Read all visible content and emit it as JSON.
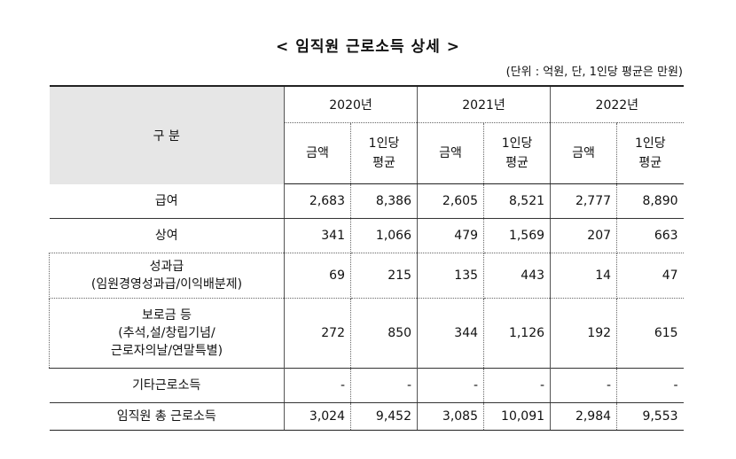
{
  "title": "< 임직원 근로소득 상세 >",
  "unit": "(단위 : 억원, 단, 1인당 평균은 만원)",
  "header": {
    "category": "구 분",
    "years": [
      "2020년",
      "2021년",
      "2022년"
    ],
    "amount": "금액",
    "avg_line1": "1인당",
    "avg_line2": "평균"
  },
  "rows": [
    {
      "label": [
        "급여"
      ],
      "values": [
        "2,683",
        "8,386",
        "2,605",
        "8,521",
        "2,777",
        "8,890"
      ]
    },
    {
      "label": [
        "상여"
      ],
      "values": [
        "341",
        "1,066",
        "479",
        "1,569",
        "207",
        "663"
      ]
    },
    {
      "label": [
        "성과급",
        "(임원경영성과급/이익배분제)"
      ],
      "values": [
        "69",
        "215",
        "135",
        "443",
        "14",
        "47"
      ]
    },
    {
      "label": [
        "보로금 등",
        "(추석,설/창립기념/",
        "근로자의날/연말특별)"
      ],
      "values": [
        "272",
        "850",
        "344",
        "1,126",
        "192",
        "615"
      ]
    },
    {
      "label": [
        "기타근로소득"
      ],
      "values": [
        "-",
        "-",
        "-",
        "-",
        "-",
        "-"
      ]
    },
    {
      "label": [
        "임직원 총 근로소득"
      ],
      "values": [
        "3,024",
        "9,452",
        "3,085",
        "10,091",
        "2,984",
        "9,553"
      ]
    }
  ]
}
